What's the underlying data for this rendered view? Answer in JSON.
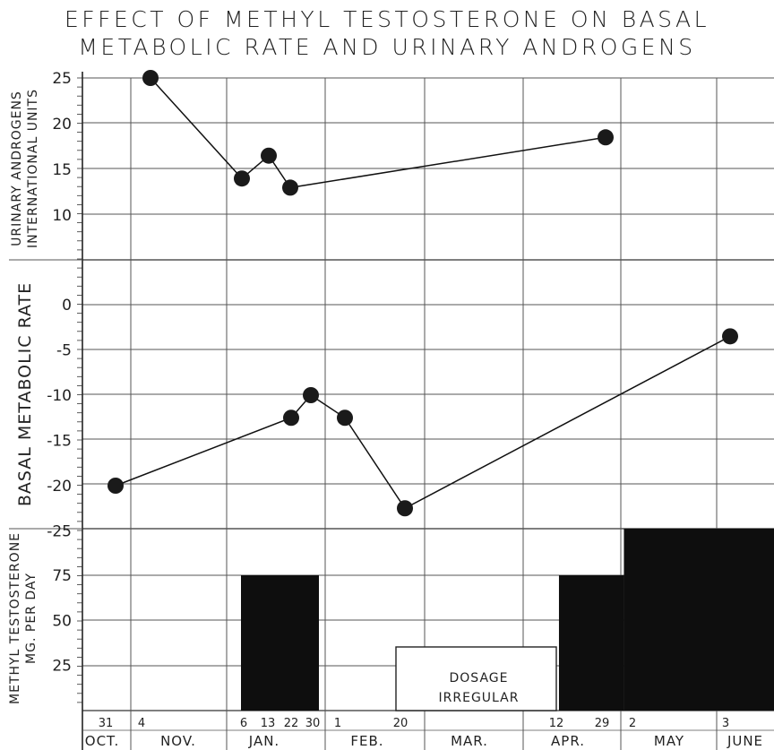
{
  "chart_data": {
    "type": "line",
    "title_lines": [
      "EFFECT OF METHYL TESTOSTERONE ON BASAL",
      "METABOLIC RATE AND URINARY ANDROGENS"
    ],
    "x_axis": {
      "months": [
        "OCT.",
        "NOV.",
        "JAN.",
        "FEB.",
        "MAR.",
        "APR.",
        "MAY",
        "JUNE"
      ],
      "day_labels": [
        "31",
        "4",
        "6",
        "13",
        "22",
        "30",
        "1",
        "20",
        "12",
        "29",
        "2",
        "3"
      ]
    },
    "panels": [
      {
        "id": "androgens",
        "ylabel_lines": [
          "URINARY ANDROGENS",
          "INTERNATIONAL UNITS"
        ],
        "ylim": [
          0,
          25
        ],
        "tick_labels": [
          "25",
          "20",
          "15",
          "10"
        ],
        "points": [
          {
            "date": "Nov 4",
            "value": 25
          },
          {
            "date": "Jan 6",
            "value": 14
          },
          {
            "date": "Jan 13",
            "value": 16.5
          },
          {
            "date": "Jan 22",
            "value": 13
          },
          {
            "date": "Apr 29",
            "value": 18.5
          }
        ]
      },
      {
        "id": "bmr",
        "ylabel_lines": [
          "BASAL METABOLIC RATE"
        ],
        "ylim": [
          -25,
          5
        ],
        "tick_labels": [
          "0",
          "-5",
          "-10",
          "-15",
          "-20",
          "-25"
        ],
        "points": [
          {
            "date": "Oct 31",
            "value": -20
          },
          {
            "date": "Jan 22",
            "value": -12.5
          },
          {
            "date": "Jan 30",
            "value": -10
          },
          {
            "date": "Feb 1",
            "value": -12.5
          },
          {
            "date": "Feb 20",
            "value": -22.5
          },
          {
            "date": "June 3",
            "value": -3.5
          }
        ]
      },
      {
        "id": "dosage",
        "ylabel_lines": [
          "METHYL TESTOSTERONE",
          "MG. PER DAY"
        ],
        "ylim": [
          0,
          100
        ],
        "tick_labels": [
          "75",
          "50",
          "25"
        ],
        "blocks": [
          {
            "from": "Jan 6",
            "to": "Jan 30",
            "value": 75
          },
          {
            "from": "Apr 12",
            "to": "May 2",
            "value": 75
          },
          {
            "from": "May 2",
            "to": "June",
            "value": 100
          }
        ],
        "irregular_block": {
          "from": "Feb 20",
          "to": "Apr 12",
          "value": 35,
          "label_lines": [
            "DOSAGE",
            "IRREGULAR"
          ]
        }
      }
    ],
    "grid": true
  }
}
